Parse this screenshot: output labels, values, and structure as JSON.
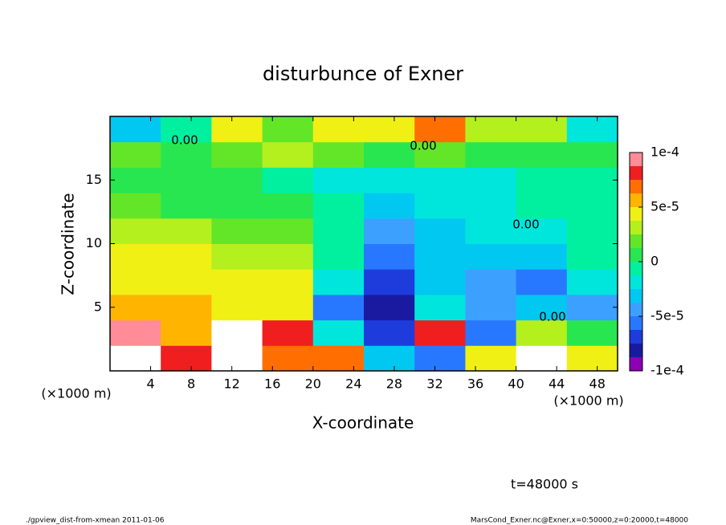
{
  "chart_data": {
    "type": "contour",
    "title": "disturbunce of Exner",
    "x_label": "X-coordinate",
    "y_label": "Z-coordinate",
    "x_unit": "(×1000 m)",
    "y_unit": "(×1000 m)",
    "time_label": "t=48000 s",
    "footer_left": "./gpview_dist-from-xmean  2011-01-06",
    "footer_right": "MarsCond_Exner.nc@Exner,x=0:50000,z=0:20000,t=48000",
    "contour_labels": [
      "0.00",
      "0.00",
      "0.00",
      "0.00"
    ],
    "xlim": [
      0,
      50
    ],
    "xticks": [
      4,
      8,
      12,
      16,
      20,
      24,
      28,
      32,
      36,
      40,
      44,
      48
    ],
    "ylim": [
      0,
      20
    ],
    "yticks": [
      5,
      10,
      15
    ],
    "x_edges": [
      0,
      5,
      10,
      15,
      20,
      25,
      30,
      35,
      40,
      45,
      50
    ],
    "y_edges": [
      0,
      2,
      4,
      6,
      8,
      10,
      12,
      14,
      16,
      18,
      20
    ],
    "z": [
      [
        0.00012,
        8e-05,
        0.00011,
        7e-05,
        7e-05,
        -3e-05,
        -6e-05,
        4e-05,
        0.00011,
        5e-05
      ],
      [
        9e-05,
        6e-05,
        0.00011,
        8e-05,
        -2e-05,
        -7e-05,
        8e-05,
        -6e-05,
        3e-05,
        1e-05
      ],
      [
        6e-05,
        6e-05,
        5e-05,
        5e-05,
        -5e-05,
        -8e-05,
        -2e-05,
        -4e-05,
        -3e-05,
        -4e-05
      ],
      [
        5e-05,
        5e-05,
        5e-05,
        4e-05,
        -2e-05,
        -7e-05,
        -3e-05,
        -4e-05,
        -5e-05,
        -2e-05
      ],
      [
        4e-05,
        4e-05,
        3e-05,
        3e-05,
        0,
        -5e-05,
        -3e-05,
        -3e-05,
        -3e-05,
        -1e-05
      ],
      [
        3e-05,
        3e-05,
        2e-05,
        2e-05,
        0,
        -4e-05,
        -3e-05,
        -2e-05,
        -2e-05,
        0
      ],
      [
        2e-05,
        1e-05,
        1e-05,
        1e-05,
        -1e-05,
        -3e-05,
        -2e-05,
        -2e-05,
        -1e-05,
        0
      ],
      [
        1e-05,
        1e-05,
        1e-05,
        0,
        -2e-05,
        -2e-05,
        -2e-05,
        -2e-05,
        -1e-05,
        0
      ],
      [
        2e-05,
        1e-05,
        2e-05,
        3e-05,
        2e-05,
        1e-05,
        2e-05,
        1e-05,
        1e-05,
        1e-05
      ],
      [
        -3e-05,
        -1e-05,
        5e-05,
        2e-05,
        4e-05,
        5e-05,
        7e-05,
        3e-05,
        3e-05,
        -2e-05
      ]
    ],
    "levels": [
      -0.0001,
      -8.75e-05,
      -7.5e-05,
      -6.25e-05,
      -5e-05,
      -3.75e-05,
      -2.5e-05,
      -1.25e-05,
      0,
      1.25e-05,
      2.5e-05,
      3.75e-05,
      5e-05,
      6.25e-05,
      7.5e-05,
      8.75e-05,
      0.0001
    ],
    "colors": [
      "#8c00b4",
      "#1a1aa0",
      "#1e3cdc",
      "#2878ff",
      "#3ca0ff",
      "#00c8f0",
      "#00e6dc",
      "#00f0a0",
      "#28e650",
      "#64e628",
      "#b4f01e",
      "#f0f014",
      "#ffb400",
      "#ff6e00",
      "#f01e1e",
      "#ff8c96"
    ],
    "over_color": "#ffffff",
    "clim": [
      -0.0001,
      0.0001
    ],
    "cticks": [
      {
        "value": 0.0001,
        "label": "1e-4"
      },
      {
        "value": 5e-05,
        "label": "5e-5"
      },
      0,
      {
        "value": -5e-05,
        "label": "-5e-5"
      },
      {
        "value": -0.0001,
        "label": "-1e-4"
      }
    ]
  }
}
